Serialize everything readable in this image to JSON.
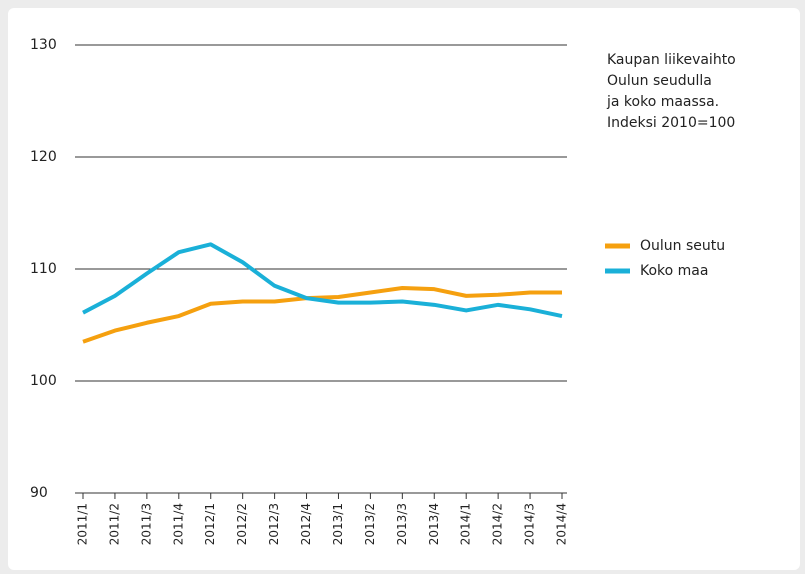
{
  "chart_data": {
    "type": "line",
    "title": [
      "Kaupan liikevaihto",
      "Oulun seudulla",
      "ja koko maassa.",
      "Indeksi 2010=100"
    ],
    "categories": [
      "2011/1",
      "2011/2",
      "2011/3",
      "2011/4",
      "2012/1",
      "2012/2",
      "2012/3",
      "2012/4",
      "2013/1",
      "2013/2",
      "2013/3",
      "2013/4",
      "2014/1",
      "2014/2",
      "2014/3",
      "2014/4"
    ],
    "series": [
      {
        "name": "Oulun seutu",
        "color": "#f5a00f",
        "values": [
          103.5,
          104.5,
          105.2,
          105.8,
          106.9,
          107.1,
          107.1,
          107.4,
          107.5,
          107.9,
          108.3,
          108.2,
          107.6,
          107.7,
          107.9,
          107.9
        ]
      },
      {
        "name": "Koko maa",
        "color": "#1ab0d8",
        "values": [
          106.1,
          107.6,
          109.6,
          111.5,
          112.2,
          110.6,
          108.5,
          107.4,
          107.0,
          107.0,
          107.1,
          106.8,
          106.3,
          106.8,
          106.4,
          105.8
        ]
      }
    ],
    "ylim": [
      90,
      130
    ],
    "yticks": [
      90,
      100,
      110,
      120,
      130
    ],
    "grid": true,
    "legend": "right"
  }
}
